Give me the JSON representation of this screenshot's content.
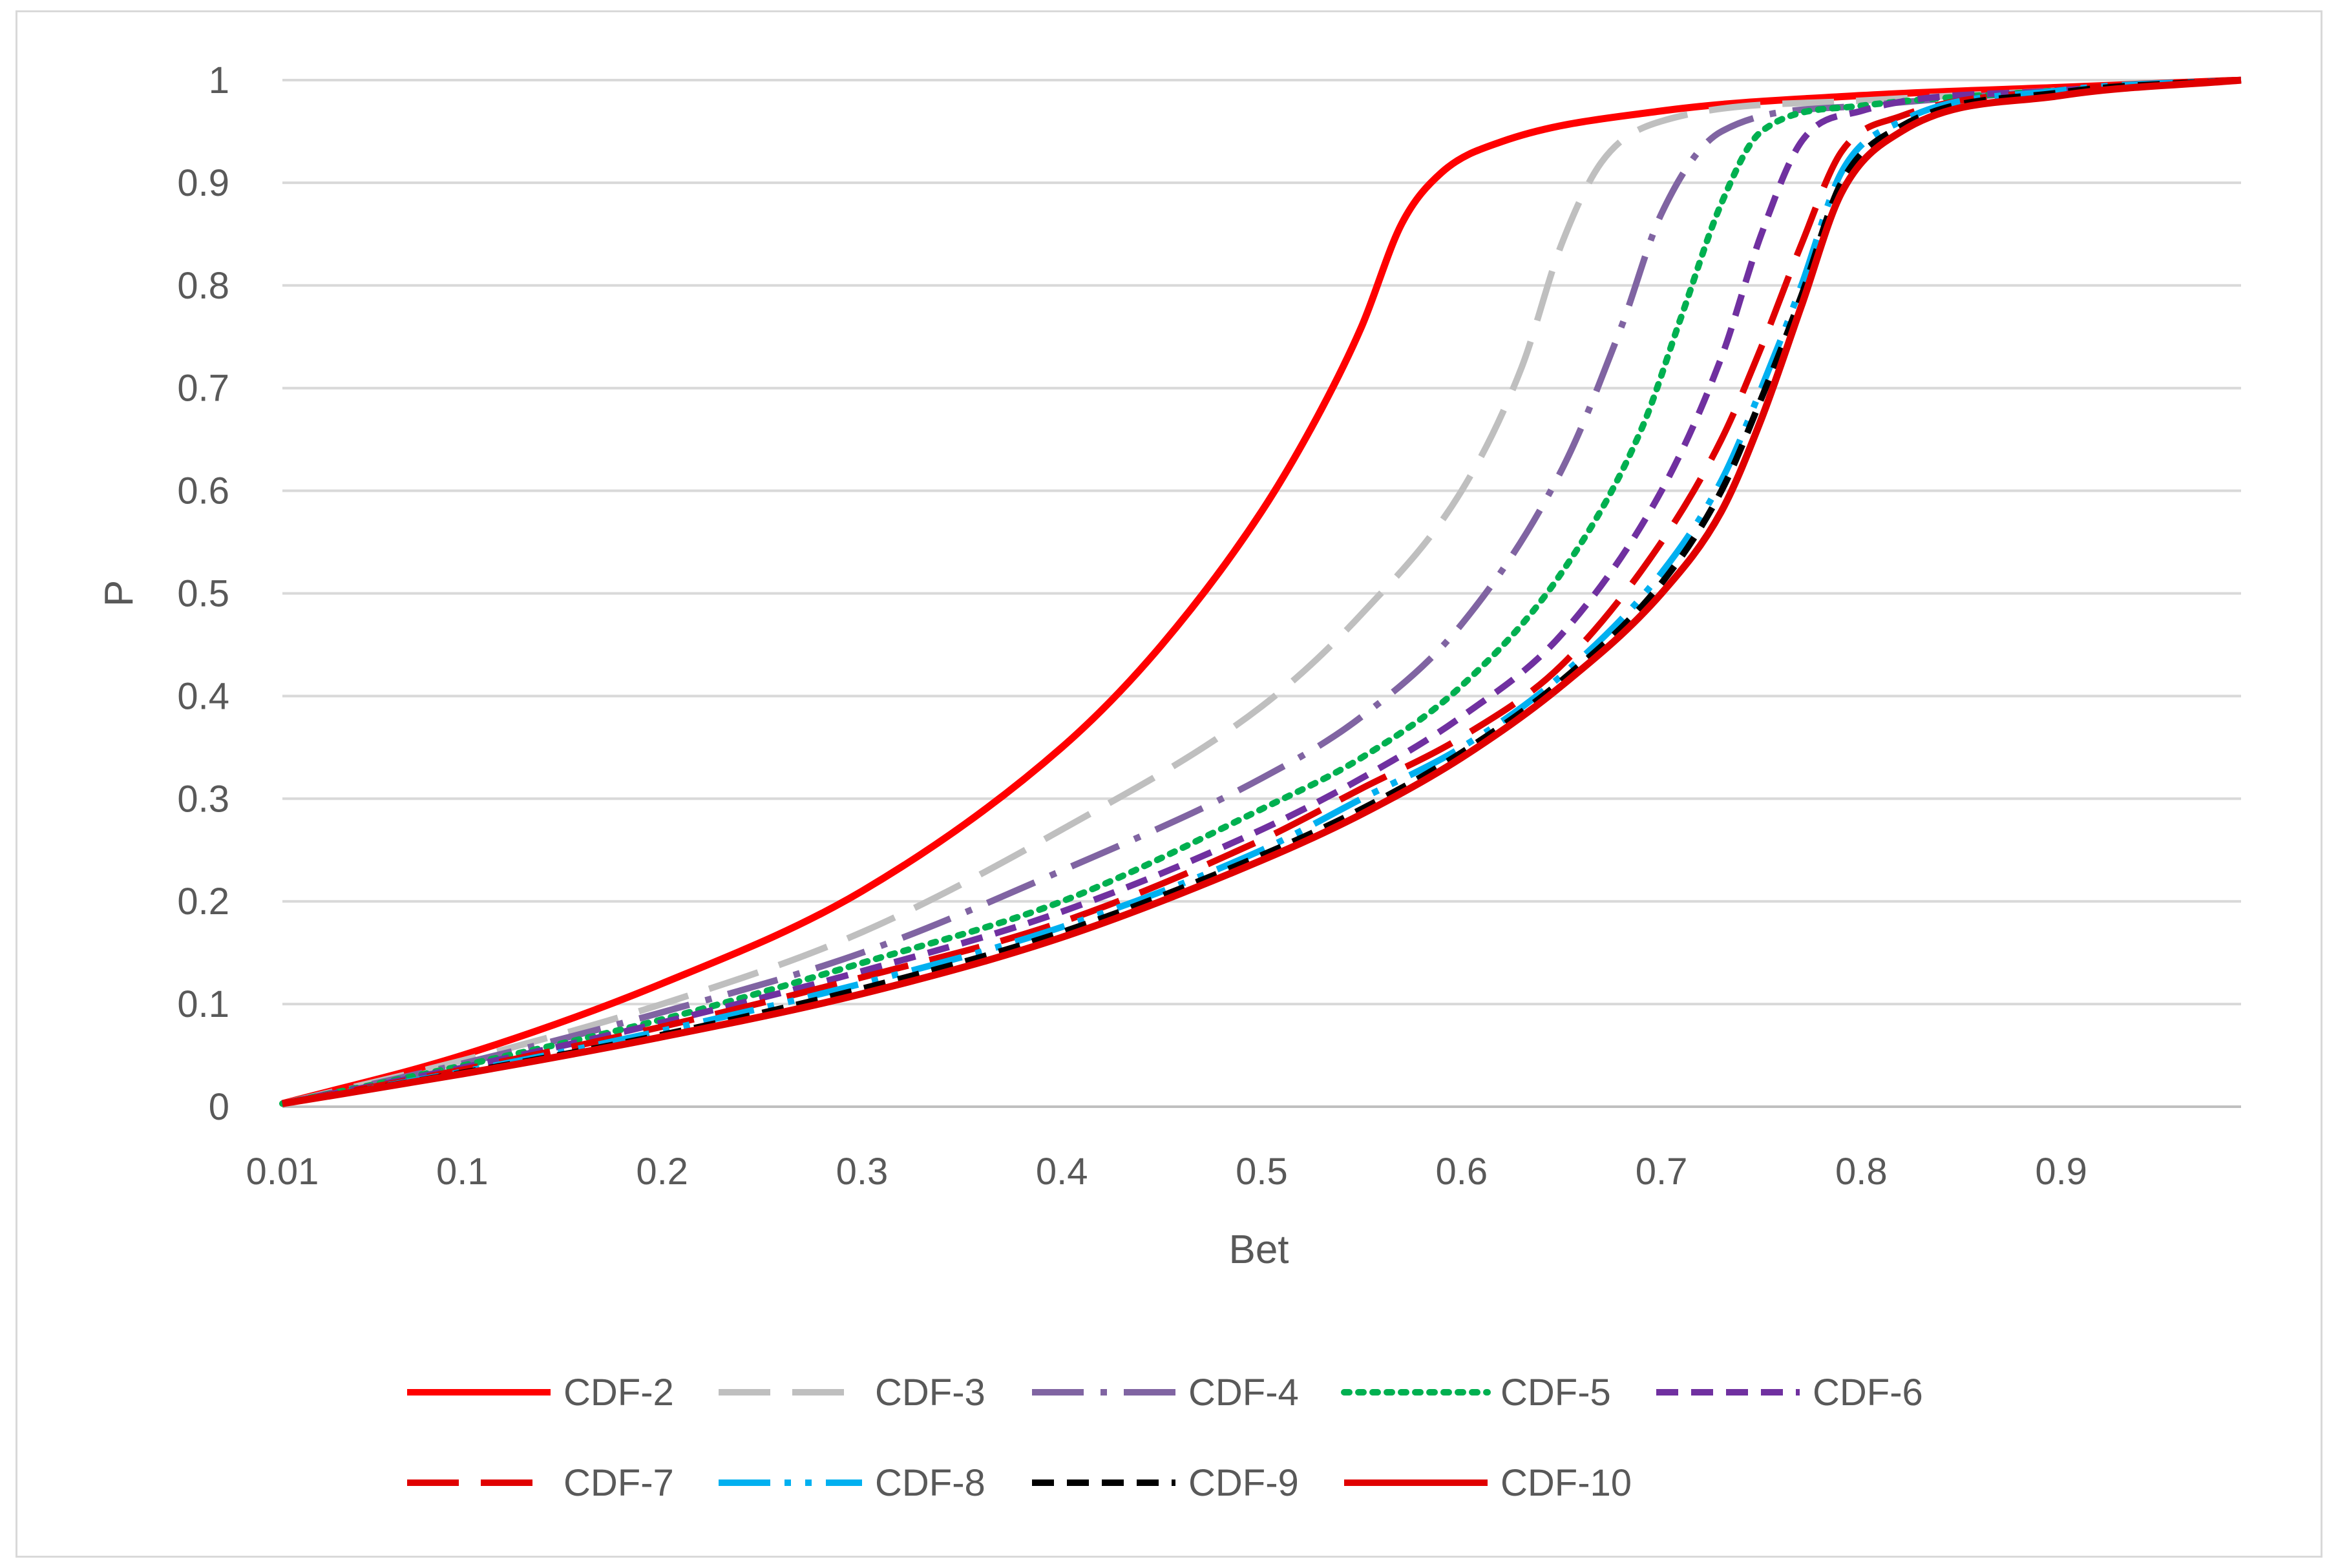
{
  "chart_data": {
    "type": "line",
    "title": "",
    "xlabel": "Bet",
    "ylabel": "P",
    "xlim": [
      0.01,
      0.99
    ],
    "ylim": [
      0,
      1
    ],
    "grid": "horizontal",
    "legend_position": "bottom",
    "x_ticks": [
      0.01,
      0.1,
      0.2,
      0.3,
      0.4,
      0.5,
      0.6,
      0.7,
      0.8,
      0.9
    ],
    "x_tick_labels": [
      "0.01",
      "0.1",
      "0.2",
      "0.3",
      "0.4",
      "0.5",
      "0.6",
      "0.7",
      "0.8",
      "0.9"
    ],
    "y_ticks": [
      0,
      0.1,
      0.2,
      0.3,
      0.4,
      0.5,
      0.6,
      0.7,
      0.8,
      0.9,
      1
    ],
    "y_tick_labels": [
      "0",
      "0.1",
      "0.2",
      "0.3",
      "0.4",
      "0.5",
      "0.6",
      "0.7",
      "0.8",
      "0.9",
      "1"
    ],
    "series": [
      {
        "name": "CDF-2",
        "color": "#ff0000",
        "dash": "solid",
        "x": [
          0.01,
          0.1,
          0.2,
          0.3,
          0.4,
          0.45,
          0.5,
          0.53,
          0.55,
          0.57,
          0.59,
          0.62,
          0.7,
          0.8,
          0.9,
          0.99
        ],
        "y": [
          0.003,
          0.05,
          0.12,
          0.21,
          0.35,
          0.45,
          0.58,
          0.68,
          0.76,
          0.86,
          0.91,
          0.94,
          0.97,
          0.985,
          0.993,
          1.0
        ]
      },
      {
        "name": "CDF-3",
        "color": "#bfbfbf",
        "dash": "longdash",
        "x": [
          0.01,
          0.1,
          0.2,
          0.3,
          0.4,
          0.5,
          0.55,
          0.6,
          0.63,
          0.65,
          0.67,
          0.7,
          0.8,
          0.9,
          0.99
        ],
        "y": [
          0.003,
          0.045,
          0.1,
          0.17,
          0.27,
          0.39,
          0.48,
          0.6,
          0.72,
          0.84,
          0.92,
          0.96,
          0.98,
          0.99,
          1.0
        ]
      },
      {
        "name": "CDF-4",
        "color": "#8064a2",
        "dash": "dashdot",
        "x": [
          0.01,
          0.1,
          0.2,
          0.3,
          0.4,
          0.5,
          0.55,
          0.6,
          0.65,
          0.68,
          0.7,
          0.73,
          0.8,
          0.9,
          0.99
        ],
        "y": [
          0.003,
          0.042,
          0.092,
          0.15,
          0.23,
          0.32,
          0.38,
          0.47,
          0.62,
          0.76,
          0.87,
          0.95,
          0.975,
          0.99,
          1.0
        ]
      },
      {
        "name": "CDF-5",
        "color": "#00b050",
        "dash": "dotted",
        "x": [
          0.01,
          0.1,
          0.2,
          0.3,
          0.4,
          0.5,
          0.55,
          0.6,
          0.65,
          0.69,
          0.71,
          0.73,
          0.75,
          0.8,
          0.9,
          0.99
        ],
        "y": [
          0.003,
          0.04,
          0.085,
          0.14,
          0.2,
          0.29,
          0.34,
          0.41,
          0.52,
          0.66,
          0.77,
          0.88,
          0.95,
          0.975,
          0.99,
          1.0
        ]
      },
      {
        "name": "CDF-6",
        "color": "#7030a0",
        "dash": "shortdash",
        "x": [
          0.01,
          0.1,
          0.2,
          0.3,
          0.4,
          0.5,
          0.55,
          0.6,
          0.65,
          0.7,
          0.73,
          0.75,
          0.77,
          0.8,
          0.9,
          0.99
        ],
        "y": [
          0.003,
          0.038,
          0.082,
          0.132,
          0.19,
          0.27,
          0.32,
          0.38,
          0.46,
          0.6,
          0.73,
          0.85,
          0.94,
          0.97,
          0.99,
          1.0
        ]
      },
      {
        "name": "CDF-7",
        "color": "#e00000",
        "dash": "longdash",
        "x": [
          0.01,
          0.1,
          0.2,
          0.3,
          0.4,
          0.5,
          0.55,
          0.6,
          0.65,
          0.7,
          0.73,
          0.75,
          0.77,
          0.79,
          0.82,
          0.9,
          0.99
        ],
        "y": [
          0.003,
          0.036,
          0.078,
          0.126,
          0.18,
          0.26,
          0.31,
          0.36,
          0.43,
          0.55,
          0.65,
          0.74,
          0.84,
          0.93,
          0.965,
          0.99,
          1.0
        ]
      },
      {
        "name": "CDF-8",
        "color": "#00b0f0",
        "dash": "dashdotdot",
        "x": [
          0.01,
          0.1,
          0.2,
          0.3,
          0.4,
          0.5,
          0.55,
          0.6,
          0.65,
          0.7,
          0.73,
          0.75,
          0.77,
          0.79,
          0.82,
          0.9,
          0.99
        ],
        "y": [
          0.003,
          0.034,
          0.074,
          0.12,
          0.175,
          0.25,
          0.3,
          0.35,
          0.42,
          0.52,
          0.61,
          0.7,
          0.8,
          0.91,
          0.96,
          0.99,
          1.0
        ]
      },
      {
        "name": "CDF-9",
        "color": "#000000",
        "dash": "shortdash",
        "x": [
          0.01,
          0.1,
          0.2,
          0.3,
          0.4,
          0.5,
          0.55,
          0.6,
          0.65,
          0.7,
          0.73,
          0.75,
          0.77,
          0.79,
          0.82,
          0.9,
          0.99
        ],
        "y": [
          0.003,
          0.033,
          0.07,
          0.115,
          0.17,
          0.245,
          0.29,
          0.345,
          0.415,
          0.51,
          0.6,
          0.69,
          0.79,
          0.9,
          0.955,
          0.988,
          1.0
        ]
      },
      {
        "name": "CDF-10",
        "color": "#e00000",
        "dash": "solid",
        "x": [
          0.01,
          0.1,
          0.2,
          0.3,
          0.4,
          0.5,
          0.55,
          0.6,
          0.65,
          0.7,
          0.73,
          0.75,
          0.77,
          0.79,
          0.82,
          0.9,
          0.99
        ],
        "y": [
          0.003,
          0.032,
          0.068,
          0.11,
          0.165,
          0.24,
          0.285,
          0.34,
          0.41,
          0.5,
          0.58,
          0.67,
          0.78,
          0.89,
          0.95,
          0.985,
          1.0
        ]
      }
    ]
  }
}
